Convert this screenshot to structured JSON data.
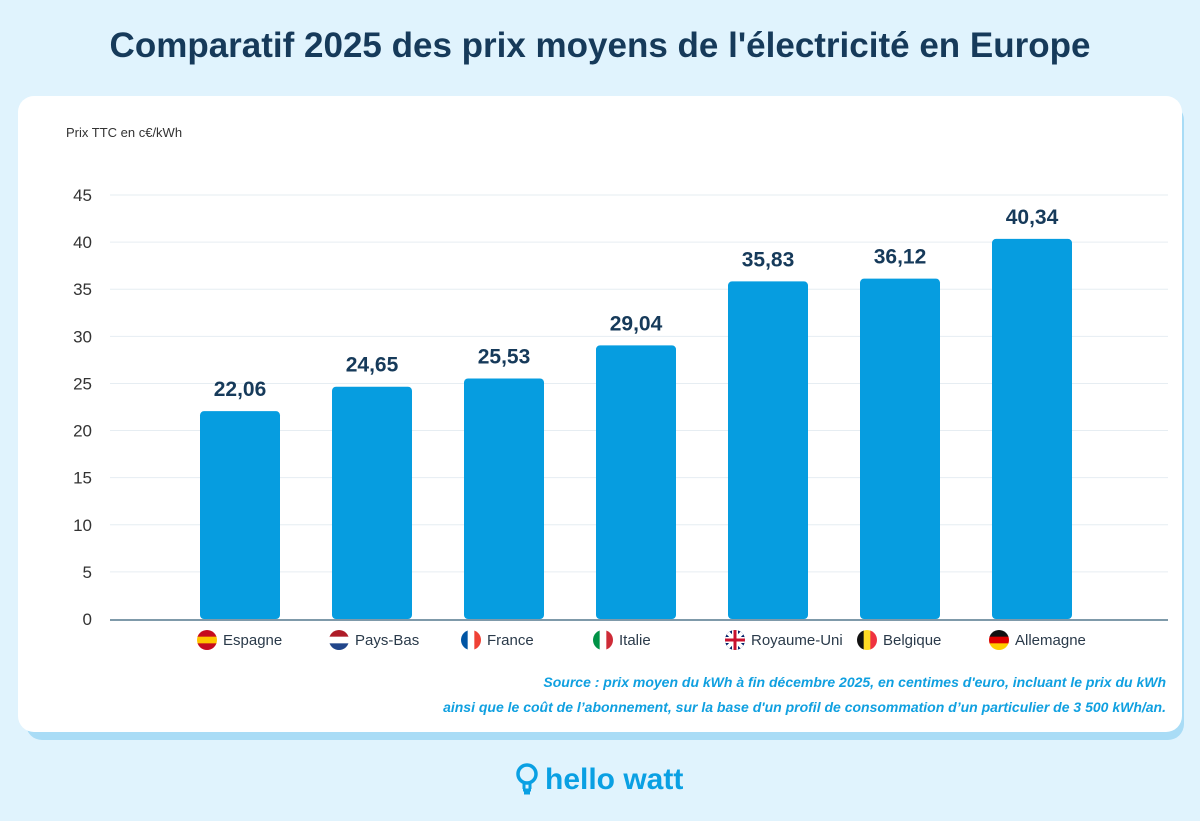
{
  "title": "Comparatif 2025 des prix moyens de l'électricité en Europe",
  "chart_data": {
    "type": "bar",
    "title": "Comparatif 2025 des prix moyens de l'électricité en Europe",
    "ylabel": "Prix TTC en c€/kWh",
    "xlabel": "",
    "ylim": [
      0,
      45
    ],
    "yticks": [
      0,
      5,
      10,
      15,
      20,
      25,
      30,
      35,
      40,
      45
    ],
    "grid": true,
    "categories": [
      "Espagne",
      "Pays-Bas",
      "France",
      "Italie",
      "Royaume-Uni",
      "Belgique",
      "Allemagne"
    ],
    "values": [
      22.06,
      24.65,
      25.53,
      29.04,
      35.83,
      36.12,
      40.34
    ],
    "data_labels": [
      "22,06",
      "24,65",
      "25,53",
      "29,04",
      "35,83",
      "36,12",
      "40,34"
    ],
    "flags": [
      "spain-flag-icon",
      "netherlands-flag-icon",
      "france-flag-icon",
      "italy-flag-icon",
      "uk-flag-icon",
      "belgium-flag-icon",
      "germany-flag-icon"
    ],
    "bar_color": "#069de0"
  },
  "source_line1": "Source : prix moyen du kWh à fin décembre 2025, en centimes d'euro, incluant le prix du kWh",
  "source_line2": "ainsi que le coût de l’abonnement, sur la base d'un profil de consommation d’un particulier de 3 500 kWh/an.",
  "logo": "hello watt"
}
